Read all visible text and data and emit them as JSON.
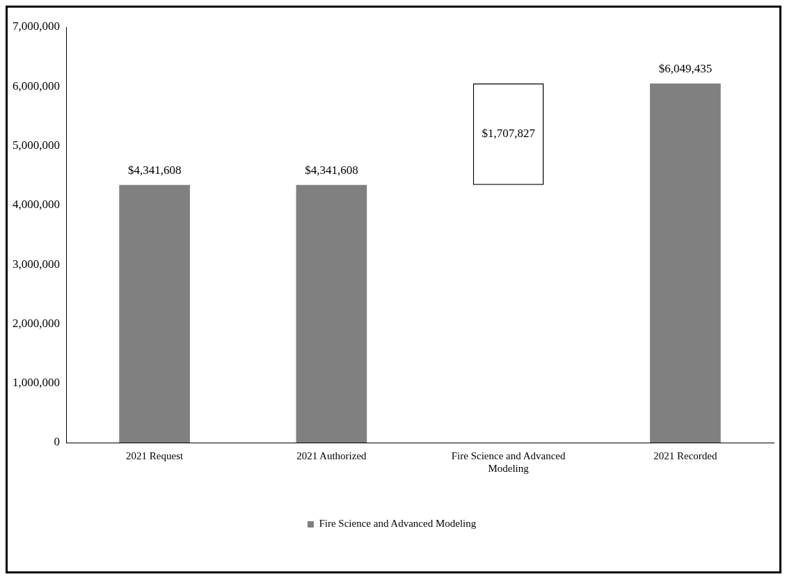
{
  "chart_data": {
    "type": "bar",
    "categories": [
      "2021 Request",
      "2021 Authorized",
      "Fire Science and Advanced Modeling",
      "2021 Recorded"
    ],
    "series": [
      {
        "name": "Fire Science and Advanced Modeling",
        "color": "#808080",
        "colors": [
          "#808080",
          "#808080",
          "#ffffff",
          "#808080"
        ],
        "values": [
          4341608,
          4341608,
          1707827,
          6049435
        ],
        "base": [
          0,
          0,
          4341608,
          0
        ],
        "value_labels": [
          "$4,341,608",
          "$4,341,608",
          "$1,707,827",
          "$6,049,435"
        ]
      }
    ],
    "ylim": [
      0,
      7000000
    ],
    "yticks": [
      0,
      {
        "value": 1000000,
        "label": "1,000,000"
      },
      {
        "value": 2000000,
        "label": "2,000,000"
      },
      {
        "value": 3000000,
        "label": "3,000,000"
      },
      {
        "value": 4000000,
        "label": "4,000,000"
      },
      {
        "value": 5000000,
        "label": "5,000,000"
      },
      {
        "value": 6000000,
        "label": "6,000,000"
      },
      {
        "value": 7000000,
        "label": "7,000,000"
      }
    ],
    "grid": false,
    "legend": "bottom"
  }
}
